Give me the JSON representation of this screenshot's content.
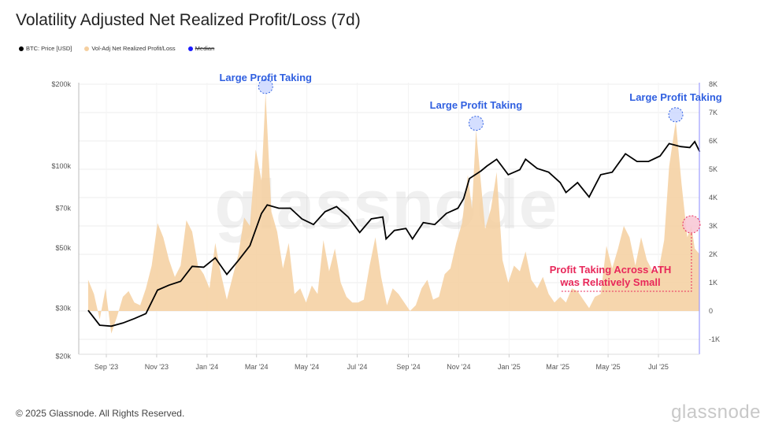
{
  "title": "Volatility Adjusted Net Realized Profit/Loss (7d)",
  "legend": [
    {
      "label": "BTC: Price [USD]",
      "color": "#000000"
    },
    {
      "label": "Vol-Adj Net Realized Profit/Loss",
      "color": "#f5cf9f"
    },
    {
      "label": "Median",
      "color": "#1a1aff"
    }
  ],
  "footer": "© 2025 Glassnode. All Rights Reserved.",
  "brand": "glassnode",
  "watermark": "glassnode",
  "chart_data": {
    "type": "line+area",
    "left_axis": {
      "label": "BTC: Price [USD]",
      "scale": "log",
      "ticks": [
        "$20k",
        "$30k",
        "$50k",
        "$70k",
        "$100k",
        "$200k"
      ],
      "tick_values": [
        20000,
        30000,
        50000,
        70000,
        100000,
        200000
      ]
    },
    "right_axis": {
      "scale": "linear",
      "ticks": [
        "-1K",
        "0",
        "1K",
        "2K",
        "3K",
        "4K",
        "5K",
        "6K",
        "7K",
        "8K"
      ],
      "tick_values": [
        -1000,
        0,
        1000,
        2000,
        3000,
        4000,
        5000,
        6000,
        7000,
        8000
      ]
    },
    "x_ticks": [
      "Sep '23",
      "Nov '23",
      "Jan '24",
      "Mar '24",
      "May '24",
      "Jul '24",
      "Sep '24",
      "Nov '24",
      "Jan '25",
      "Mar '25",
      "May '25",
      "Jul '25"
    ],
    "x_tick_dates": [
      "2023-09-01",
      "2023-11-01",
      "2024-01-01",
      "2024-03-01",
      "2024-05-01",
      "2024-07-01",
      "2024-09-01",
      "2024-11-01",
      "2025-01-01",
      "2025-03-01",
      "2025-05-01",
      "2025-07-01"
    ],
    "grid": true,
    "series": [
      {
        "name": "BTC: Price [USD]",
        "color": "#000000",
        "axis": "left",
        "points": [
          [
            "2023-08-10",
            29500
          ],
          [
            "2023-08-24",
            26000
          ],
          [
            "2023-09-07",
            25800
          ],
          [
            "2023-09-21",
            26500
          ],
          [
            "2023-10-05",
            27500
          ],
          [
            "2023-10-19",
            28700
          ],
          [
            "2023-11-02",
            35000
          ],
          [
            "2023-11-16",
            36500
          ],
          [
            "2023-11-30",
            37700
          ],
          [
            "2023-12-14",
            42800
          ],
          [
            "2023-12-28",
            42500
          ],
          [
            "2024-01-11",
            46000
          ],
          [
            "2024-01-25",
            40000
          ],
          [
            "2024-02-08",
            45000
          ],
          [
            "2024-02-22",
            51000
          ],
          [
            "2024-03-07",
            67000
          ],
          [
            "2024-03-14",
            72000
          ],
          [
            "2024-03-28",
            70000
          ],
          [
            "2024-04-11",
            70000
          ],
          [
            "2024-04-25",
            64000
          ],
          [
            "2024-05-09",
            61000
          ],
          [
            "2024-05-23",
            68000
          ],
          [
            "2024-06-06",
            71000
          ],
          [
            "2024-06-20",
            65000
          ],
          [
            "2024-07-04",
            57000
          ],
          [
            "2024-07-18",
            64000
          ],
          [
            "2024-08-01",
            65000
          ],
          [
            "2024-08-05",
            54000
          ],
          [
            "2024-08-15",
            58000
          ],
          [
            "2024-08-29",
            59000
          ],
          [
            "2024-09-06",
            54000
          ],
          [
            "2024-09-19",
            62000
          ],
          [
            "2024-10-03",
            61000
          ],
          [
            "2024-10-17",
            67000
          ],
          [
            "2024-10-31",
            70000
          ],
          [
            "2024-11-07",
            76000
          ],
          [
            "2024-11-14",
            90000
          ],
          [
            "2024-11-28",
            96000
          ],
          [
            "2024-12-05",
            100000
          ],
          [
            "2024-12-17",
            106000
          ],
          [
            "2024-12-31",
            93000
          ],
          [
            "2025-01-14",
            97000
          ],
          [
            "2025-01-21",
            106000
          ],
          [
            "2025-02-04",
            98000
          ],
          [
            "2025-02-18",
            95000
          ],
          [
            "2025-03-04",
            87000
          ],
          [
            "2025-03-11",
            80000
          ],
          [
            "2025-03-25",
            87000
          ],
          [
            "2025-04-08",
            77000
          ],
          [
            "2025-04-22",
            93000
          ],
          [
            "2025-05-06",
            95000
          ],
          [
            "2025-05-22",
            111000
          ],
          [
            "2025-06-05",
            104000
          ],
          [
            "2025-06-19",
            104000
          ],
          [
            "2025-07-03",
            109000
          ],
          [
            "2025-07-14",
            121000
          ],
          [
            "2025-07-28",
            118000
          ],
          [
            "2025-08-08",
            117000
          ],
          [
            "2025-08-14",
            123000
          ],
          [
            "2025-08-20",
            113000
          ]
        ]
      },
      {
        "name": "Vol-Adj Net Realized Profit/Loss",
        "color": "#f5cf9f",
        "axis": "right",
        "points": [
          [
            "2023-08-10",
            1100
          ],
          [
            "2023-08-17",
            600
          ],
          [
            "2023-08-24",
            -300
          ],
          [
            "2023-08-31",
            800
          ],
          [
            "2023-09-07",
            -800
          ],
          [
            "2023-09-14",
            -200
          ],
          [
            "2023-09-21",
            500
          ],
          [
            "2023-09-28",
            700
          ],
          [
            "2023-10-05",
            300
          ],
          [
            "2023-10-12",
            200
          ],
          [
            "2023-10-19",
            800
          ],
          [
            "2023-10-26",
            1600
          ],
          [
            "2023-11-02",
            3100
          ],
          [
            "2023-11-09",
            2600
          ],
          [
            "2023-11-16",
            1800
          ],
          [
            "2023-11-23",
            1200
          ],
          [
            "2023-11-30",
            1600
          ],
          [
            "2023-12-07",
            3200
          ],
          [
            "2023-12-14",
            2800
          ],
          [
            "2023-12-21",
            1600
          ],
          [
            "2023-12-28",
            1300
          ],
          [
            "2024-01-04",
            800
          ],
          [
            "2024-01-11",
            2400
          ],
          [
            "2024-01-18",
            1300
          ],
          [
            "2024-01-25",
            400
          ],
          [
            "2024-02-01",
            1200
          ],
          [
            "2024-02-08",
            2000
          ],
          [
            "2024-02-15",
            3300
          ],
          [
            "2024-02-22",
            3000
          ],
          [
            "2024-02-29",
            5700
          ],
          [
            "2024-03-07",
            4600
          ],
          [
            "2024-03-12",
            7700
          ],
          [
            "2024-03-19",
            3500
          ],
          [
            "2024-03-26",
            2800
          ],
          [
            "2024-04-02",
            1500
          ],
          [
            "2024-04-09",
            2400
          ],
          [
            "2024-04-16",
            600
          ],
          [
            "2024-04-23",
            800
          ],
          [
            "2024-04-30",
            300
          ],
          [
            "2024-05-07",
            900
          ],
          [
            "2024-05-14",
            600
          ],
          [
            "2024-05-21",
            2500
          ],
          [
            "2024-05-28",
            1400
          ],
          [
            "2024-06-04",
            2200
          ],
          [
            "2024-06-11",
            1000
          ],
          [
            "2024-06-18",
            500
          ],
          [
            "2024-06-25",
            300
          ],
          [
            "2024-07-02",
            300
          ],
          [
            "2024-07-09",
            400
          ],
          [
            "2024-07-16",
            1600
          ],
          [
            "2024-07-23",
            2600
          ],
          [
            "2024-07-30",
            1200
          ],
          [
            "2024-08-06",
            200
          ],
          [
            "2024-08-13",
            800
          ],
          [
            "2024-08-20",
            600
          ],
          [
            "2024-08-27",
            300
          ],
          [
            "2024-09-03",
            0
          ],
          [
            "2024-09-10",
            200
          ],
          [
            "2024-09-17",
            800
          ],
          [
            "2024-09-24",
            1100
          ],
          [
            "2024-10-01",
            400
          ],
          [
            "2024-10-08",
            500
          ],
          [
            "2024-10-15",
            1300
          ],
          [
            "2024-10-22",
            1500
          ],
          [
            "2024-10-29",
            2400
          ],
          [
            "2024-11-05",
            3100
          ],
          [
            "2024-11-12",
            4800
          ],
          [
            "2024-11-17",
            3600
          ],
          [
            "2024-11-22",
            6400
          ],
          [
            "2024-12-03",
            2900
          ],
          [
            "2024-12-10",
            3600
          ],
          [
            "2024-12-17",
            4900
          ],
          [
            "2024-12-24",
            1800
          ],
          [
            "2024-12-31",
            1000
          ],
          [
            "2025-01-07",
            1600
          ],
          [
            "2025-01-14",
            1400
          ],
          [
            "2025-01-21",
            2100
          ],
          [
            "2025-01-28",
            1100
          ],
          [
            "2025-02-04",
            800
          ],
          [
            "2025-02-11",
            1200
          ],
          [
            "2025-02-18",
            600
          ],
          [
            "2025-02-25",
            300
          ],
          [
            "2025-03-04",
            500
          ],
          [
            "2025-03-11",
            300
          ],
          [
            "2025-03-18",
            800
          ],
          [
            "2025-03-25",
            700
          ],
          [
            "2025-04-01",
            400
          ],
          [
            "2025-04-08",
            100
          ],
          [
            "2025-04-15",
            500
          ],
          [
            "2025-04-22",
            600
          ],
          [
            "2025-04-29",
            2300
          ],
          [
            "2025-05-06",
            1500
          ],
          [
            "2025-05-13",
            2200
          ],
          [
            "2025-05-20",
            3000
          ],
          [
            "2025-05-27",
            2600
          ],
          [
            "2025-06-03",
            1600
          ],
          [
            "2025-06-10",
            2600
          ],
          [
            "2025-06-17",
            1800
          ],
          [
            "2025-06-24",
            1400
          ],
          [
            "2025-07-01",
            1400
          ],
          [
            "2025-07-08",
            2500
          ],
          [
            "2025-07-14",
            5100
          ],
          [
            "2025-07-22",
            6700
          ],
          [
            "2025-07-29",
            4500
          ],
          [
            "2025-08-05",
            2600
          ],
          [
            "2025-08-10",
            3000
          ],
          [
            "2025-08-14",
            2200
          ],
          [
            "2025-08-20",
            2000
          ]
        ]
      }
    ],
    "annotations": [
      {
        "text": "Large Profit Taking",
        "date": "2024-03-12",
        "value": 7700,
        "color": "#2f5fe0"
      },
      {
        "text": "Large Profit Taking",
        "date": "2024-11-22",
        "value": 6400,
        "color": "#2f5fe0"
      },
      {
        "text": "Large Profit Taking",
        "date": "2025-07-22",
        "value": 6700,
        "color": "#2f5fe0"
      },
      {
        "text": "Profit Taking Across ATH",
        "text2": "was Relatively Small",
        "date": "2025-08-10",
        "value": 3000,
        "color": "#e8285a"
      }
    ]
  }
}
